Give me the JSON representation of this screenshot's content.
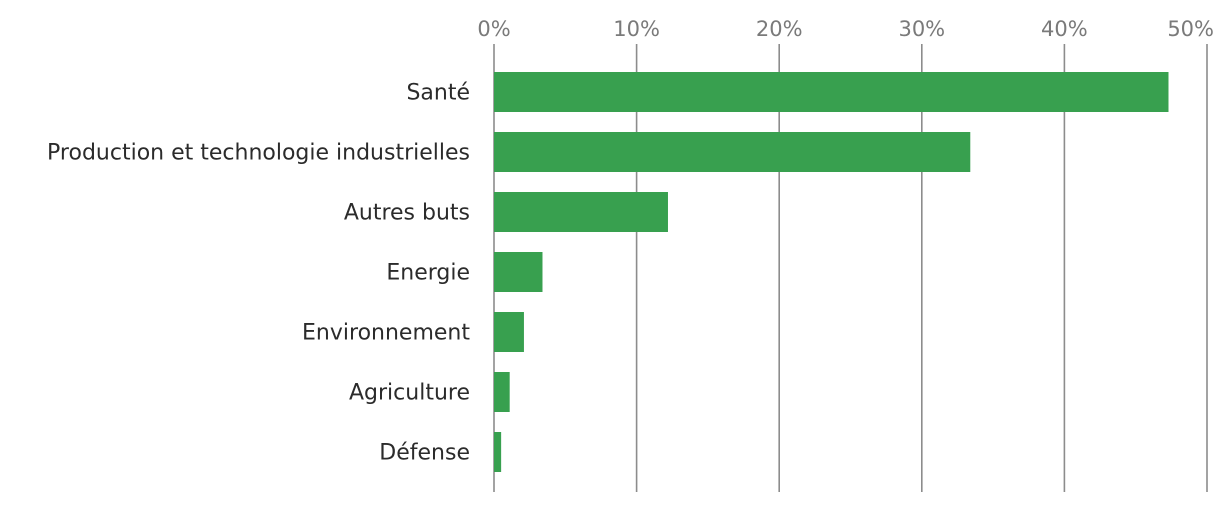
{
  "chart_data": {
    "type": "bar",
    "orientation": "horizontal",
    "title": "",
    "xlabel": "",
    "ylabel": "",
    "categories": [
      "Santé",
      "Production et technologie industrielles",
      "Autres buts",
      "Energie",
      "Environnement",
      "Agriculture",
      "Défense"
    ],
    "values": [
      47.3,
      33.4,
      12.2,
      3.4,
      2.1,
      1.1,
      0.5
    ],
    "value_unit": "%",
    "xlim": [
      0,
      50
    ],
    "xticks": [
      0,
      10,
      20,
      30,
      40,
      50
    ],
    "xtick_labels": [
      "0%",
      "10%",
      "20%",
      "30%",
      "40%",
      "50%"
    ],
    "tick_position": "top",
    "grid": true,
    "legend": false,
    "bar_color": "#38a04f",
    "grid_color": "#8c8c8c",
    "tick_label_color": "#7a7a7a",
    "category_label_color": "#2b2b2b"
  }
}
